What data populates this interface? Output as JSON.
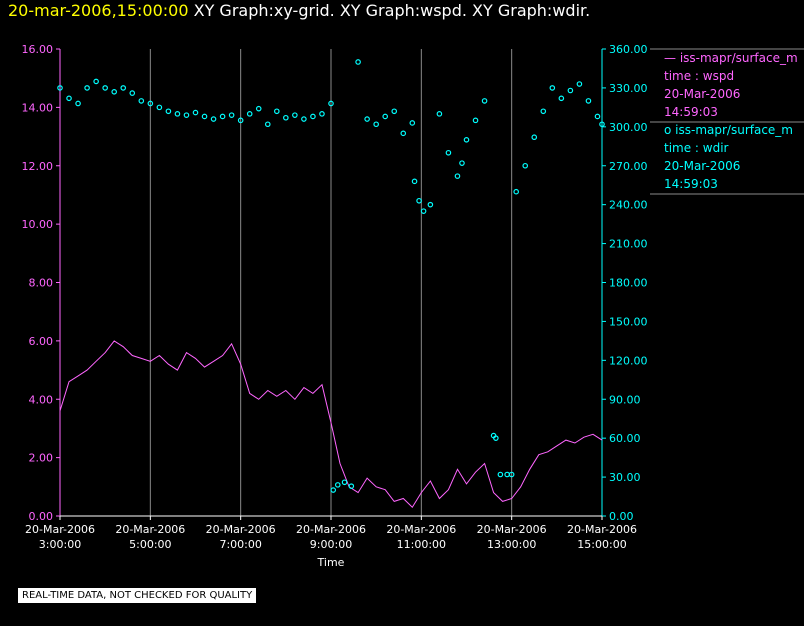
{
  "header": {
    "timestamp": "20-mar-2006,15:00:00",
    "titles": "XY Graph:xy-grid.  XY Graph:wspd.  XY Graph:wdir."
  },
  "notice": "REAL-TIME DATA, NOT CHECKED FOR QUALITY",
  "colors": {
    "wspd": "#ff66ff",
    "wdir": "#00ffff",
    "grid": "#8a8a8a",
    "axis": "#ffffff"
  },
  "legend": [
    {
      "prefix": "—",
      "source": "iss-mapr/surface_m",
      "line2": "time : wspd",
      "line3": "20-Mar-2006",
      "line4": "14:59:03",
      "color": "#ff66ff"
    },
    {
      "prefix": "o",
      "source": "iss-mapr/surface_m",
      "line2": "time : wdir",
      "line3": "20-Mar-2006",
      "line4": "14:59:03",
      "color": "#00ffff"
    }
  ],
  "chart_data": {
    "type": "line",
    "xlabel": "Time",
    "x_ticks": [
      {
        "hour": 3,
        "date": "20-Mar-2006",
        "time": "3:00:00"
      },
      {
        "hour": 5,
        "date": "20-Mar-2006",
        "time": "5:00:00"
      },
      {
        "hour": 7,
        "date": "20-Mar-2006",
        "time": "7:00:00"
      },
      {
        "hour": 9,
        "date": "20-Mar-2006",
        "time": "9:00:00"
      },
      {
        "hour": 11,
        "date": "20-Mar-2006",
        "time": "11:00:00"
      },
      {
        "hour": 13,
        "date": "20-Mar-2006",
        "time": "13:00:00"
      },
      {
        "hour": 15,
        "date": "20-Mar-2006",
        "time": "15:00:00"
      }
    ],
    "xlim": [
      3,
      15
    ],
    "y_left": {
      "ylim": [
        0,
        16
      ],
      "ticks": [
        "0.00",
        "2.00",
        "4.00",
        "6.00",
        "8.00",
        "10.00",
        "12.00",
        "14.00",
        "16.00"
      ]
    },
    "y_right": {
      "ylim": [
        0,
        360
      ],
      "ticks": [
        "0.00",
        "30.00",
        "60.00",
        "90.00",
        "120.00",
        "150.00",
        "180.00",
        "210.00",
        "240.00",
        "270.00",
        "300.00",
        "330.00",
        "360.00"
      ]
    },
    "grid": "vertical",
    "series": [
      {
        "name": "time : wspd",
        "style": "line",
        "axis": "left",
        "x": [
          3.0,
          3.2,
          3.4,
          3.6,
          3.8,
          4.0,
          4.2,
          4.4,
          4.6,
          4.8,
          5.0,
          5.2,
          5.4,
          5.6,
          5.8,
          6.0,
          6.2,
          6.4,
          6.6,
          6.8,
          7.0,
          7.2,
          7.4,
          7.6,
          7.8,
          8.0,
          8.2,
          8.4,
          8.6,
          8.8,
          9.0,
          9.2,
          9.4,
          9.6,
          9.8,
          10.0,
          10.2,
          10.4,
          10.6,
          10.8,
          11.0,
          11.2,
          11.4,
          11.6,
          11.8,
          12.0,
          12.2,
          12.4,
          12.6,
          12.8,
          13.0,
          13.2,
          13.4,
          13.6,
          13.8,
          14.0,
          14.2,
          14.4,
          14.6,
          14.8,
          15.0
        ],
        "y": [
          3.6,
          4.6,
          4.8,
          5.0,
          5.3,
          5.6,
          6.0,
          5.8,
          5.5,
          5.4,
          5.3,
          5.5,
          5.2,
          5.0,
          5.6,
          5.4,
          5.1,
          5.3,
          5.5,
          5.9,
          5.2,
          4.2,
          4.0,
          4.3,
          4.1,
          4.3,
          4.0,
          4.4,
          4.2,
          4.5,
          3.2,
          1.8,
          1.0,
          0.8,
          1.3,
          1.0,
          0.9,
          0.5,
          0.6,
          0.3,
          0.8,
          1.2,
          0.6,
          0.9,
          1.6,
          1.1,
          1.5,
          1.8,
          0.8,
          0.5,
          0.6,
          1.0,
          1.6,
          2.1,
          2.2,
          2.4,
          2.6,
          2.5,
          2.7,
          2.8,
          2.6
        ]
      },
      {
        "name": "time : wdir",
        "style": "scatter",
        "axis": "right",
        "x": [
          3.0,
          3.2,
          3.4,
          3.6,
          3.8,
          4.0,
          4.2,
          4.4,
          4.6,
          4.8,
          5.0,
          5.2,
          5.4,
          5.6,
          5.8,
          6.0,
          6.2,
          6.4,
          6.6,
          6.8,
          7.0,
          7.2,
          7.4,
          7.6,
          7.8,
          8.0,
          8.2,
          8.4,
          8.6,
          8.8,
          9.0,
          9.05,
          9.15,
          9.3,
          9.45,
          9.6,
          9.8,
          10.0,
          10.2,
          10.4,
          10.6,
          10.8,
          10.85,
          10.95,
          11.05,
          11.2,
          11.4,
          11.6,
          11.8,
          11.9,
          12.0,
          12.2,
          12.4,
          12.6,
          12.65,
          12.75,
          12.9,
          13.0,
          13.1,
          13.3,
          13.5,
          13.7,
          13.9,
          14.1,
          14.3,
          14.5,
          14.7,
          14.9,
          15.0
        ],
        "y": [
          330,
          322,
          318,
          330,
          335,
          330,
          327,
          330,
          326,
          320,
          318,
          315,
          312,
          310,
          309,
          311,
          308,
          306,
          308,
          309,
          305,
          310,
          314,
          302,
          312,
          307,
          309,
          306,
          308,
          310,
          318,
          20,
          24,
          26,
          23,
          350,
          306,
          302,
          308,
          312,
          295,
          303,
          258,
          243,
          235,
          240,
          310,
          280,
          262,
          272,
          290,
          305,
          320,
          62,
          60,
          32,
          32,
          32,
          250,
          270,
          292,
          312,
          330,
          322,
          328,
          333,
          320,
          308,
          302
        ]
      }
    ]
  }
}
